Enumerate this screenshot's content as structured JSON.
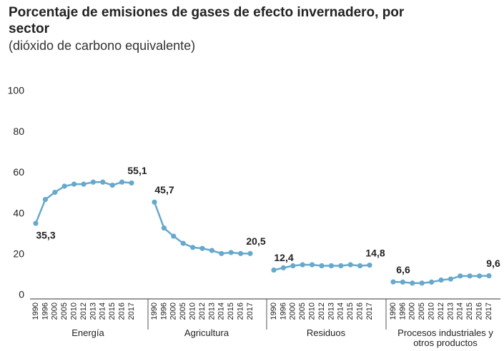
{
  "chart_data": {
    "type": "line",
    "title": "Porcentaje de emisiones de gases de efecto invernadero, por sector",
    "subtitle": "(dióxido de carbono equivalente)",
    "categories": [
      "1990",
      "1996",
      "2000",
      "2005",
      "2010",
      "2012",
      "2013",
      "2014",
      "2015",
      "2016",
      "2017"
    ],
    "ylim": [
      0,
      100
    ],
    "yticks": [
      0,
      20,
      40,
      60,
      80,
      100
    ],
    "grid": false,
    "color": "#66a9cc",
    "series": [
      {
        "name": "Energía",
        "values": [
          35.3,
          47,
          50.5,
          53.5,
          54.5,
          54.5,
          55.5,
          55.5,
          54,
          55.5,
          55.1
        ],
        "value_labels": [
          "35,3",
          null,
          null,
          null,
          null,
          null,
          null,
          null,
          null,
          null,
          "55,1"
        ]
      },
      {
        "name": "Agricultura",
        "values": [
          45.7,
          33,
          29,
          25.5,
          23.5,
          23,
          22,
          20.5,
          21,
          20.5,
          20.5
        ],
        "value_labels": [
          "45,7",
          null,
          null,
          null,
          null,
          null,
          null,
          null,
          null,
          null,
          "20,5"
        ]
      },
      {
        "name": "Residuos",
        "values": [
          12.4,
          13.5,
          14.5,
          15,
          15,
          14.5,
          14.5,
          14.5,
          15,
          14.5,
          14.8
        ],
        "value_labels": [
          "12,4",
          null,
          null,
          null,
          null,
          null,
          null,
          null,
          null,
          null,
          "14,8"
        ]
      },
      {
        "name": "Procesos industriales y otros productos",
        "values": [
          6.6,
          6.5,
          6,
          6,
          6.5,
          7.5,
          8,
          9.5,
          9.5,
          9.5,
          9.6
        ],
        "value_labels": [
          "6,6",
          null,
          null,
          null,
          null,
          null,
          null,
          null,
          null,
          null,
          "9,6"
        ]
      }
    ]
  }
}
